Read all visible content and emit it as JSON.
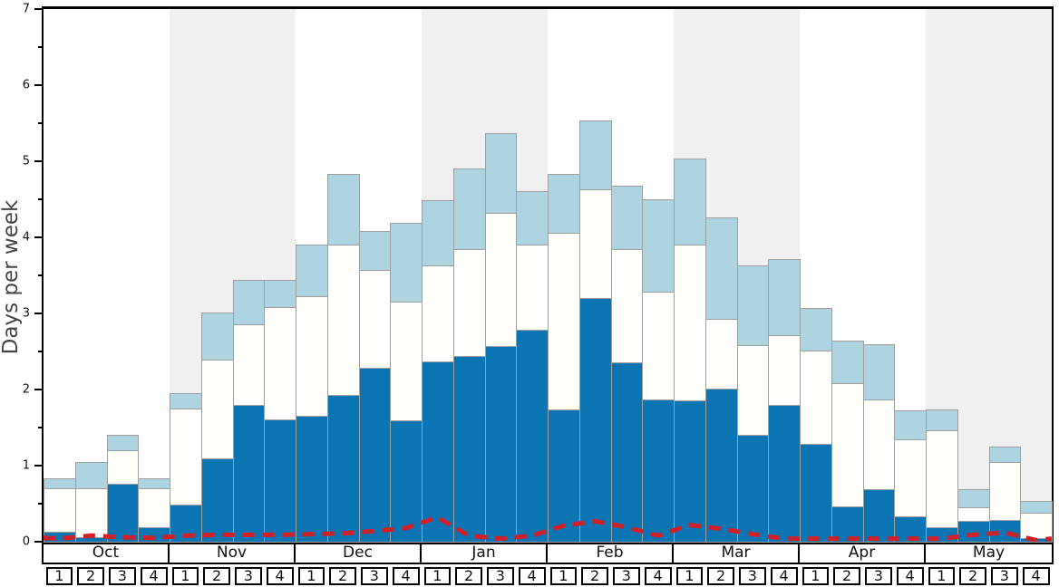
{
  "y_axis": {
    "label": "Days per week",
    "min": 0,
    "max": 7,
    "major_ticks": [
      "0",
      "1",
      "2",
      "3",
      "4",
      "5",
      "6",
      "7"
    ],
    "minor_step": 0.5
  },
  "x_axis": {
    "months": [
      "Oct",
      "Nov",
      "Dec",
      "Jan",
      "Feb",
      "Mar",
      "Apr",
      "May"
    ],
    "weeks": [
      "1",
      "2",
      "3",
      "4"
    ]
  },
  "colors": {
    "dark_blue": "#0b74b2",
    "white_bar": "#fffffb",
    "light_blue": "#aed4e1",
    "red_line": "#d0202a",
    "band_gray": "#f0f0f0",
    "band_white": "#ffffff",
    "bar_border": "#9f9f9f",
    "frame": "#000000"
  },
  "chart_data": {
    "type": "bar",
    "stacked": true,
    "title": "",
    "xlabel": "",
    "ylabel": "Days per week",
    "ylim": [
      0,
      7
    ],
    "grid": false,
    "legend": "none",
    "months": [
      "Oct",
      "Nov",
      "Dec",
      "Jan",
      "Feb",
      "Mar",
      "Apr",
      "May"
    ],
    "weeks_per_month": [
      "1",
      "2",
      "3",
      "4"
    ],
    "categories": [
      "Oct-1",
      "Oct-2",
      "Oct-3",
      "Oct-4",
      "Nov-1",
      "Nov-2",
      "Nov-3",
      "Nov-4",
      "Dec-1",
      "Dec-2",
      "Dec-3",
      "Dec-4",
      "Jan-1",
      "Jan-2",
      "Jan-3",
      "Jan-4",
      "Feb-1",
      "Feb-2",
      "Feb-3",
      "Feb-4",
      "Mar-1",
      "Mar-2",
      "Mar-3",
      "Mar-4",
      "Apr-1",
      "Apr-2",
      "Apr-3",
      "Apr-4",
      "May-1",
      "May-2",
      "May-3",
      "May-4"
    ],
    "series": [
      {
        "name": "dark-blue-segment",
        "color": "#0b74b2",
        "values": [
          0.13,
          0.06,
          0.76,
          0.19,
          0.49,
          1.1,
          1.8,
          1.61,
          1.66,
          1.93,
          2.29,
          1.59,
          2.37,
          2.44,
          2.57,
          2.79,
          1.74,
          3.2,
          2.36,
          1.87,
          1.86,
          2.01,
          1.4,
          1.8,
          1.29,
          0.47,
          0.69,
          0.33,
          0.19,
          0.27,
          0.28,
          0.05
        ]
      },
      {
        "name": "white-segment",
        "color": "#fffffb",
        "values": [
          0.57,
          0.64,
          0.44,
          0.51,
          1.26,
          1.29,
          1.06,
          1.47,
          1.57,
          1.97,
          1.28,
          1.57,
          1.26,
          1.41,
          1.75,
          1.11,
          2.32,
          1.43,
          1.49,
          1.42,
          2.04,
          0.92,
          1.18,
          0.91,
          1.22,
          1.61,
          1.18,
          1.01,
          1.27,
          0.18,
          0.77,
          0.33
        ]
      },
      {
        "name": "light-blue-segment",
        "color": "#aed4e1",
        "values": [
          0.13,
          0.35,
          0.21,
          0.13,
          0.2,
          0.62,
          0.58,
          0.36,
          0.68,
          0.93,
          0.51,
          1.03,
          0.86,
          1.05,
          1.05,
          0.71,
          0.77,
          0.9,
          0.83,
          1.21,
          1.14,
          1.33,
          1.05,
          1.0,
          0.56,
          0.56,
          0.72,
          0.39,
          0.28,
          0.24,
          0.2,
          0.16
        ]
      }
    ],
    "red_dashed_line": {
      "name": "red-dashed-line",
      "color": "#d0202a",
      "values": [
        0.04,
        0.08,
        0.06,
        0.05,
        0.08,
        0.09,
        0.09,
        0.09,
        0.1,
        0.11,
        0.14,
        0.18,
        0.32,
        0.08,
        0.04,
        0.08,
        0.21,
        0.27,
        0.19,
        0.08,
        0.22,
        0.17,
        0.1,
        0.04,
        0.04,
        0.04,
        0.04,
        0.04,
        0.04,
        0.09,
        0.12,
        0.02
      ],
      "edge_start_value": 0.05,
      "edge_end_value": 0.04
    }
  }
}
